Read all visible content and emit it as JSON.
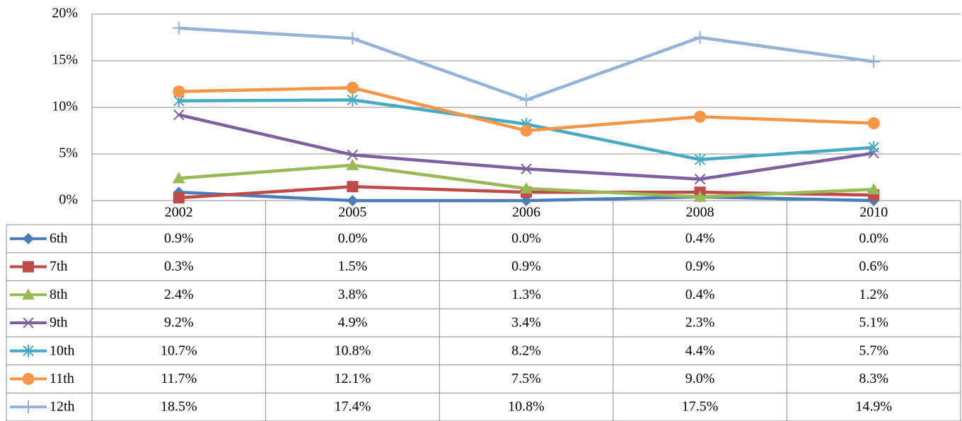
{
  "chart_data": {
    "type": "line",
    "categories": [
      "2002",
      "2005",
      "2006",
      "2008",
      "2010"
    ],
    "ylim": [
      0,
      20
    ],
    "yticks": [
      {
        "value": 0,
        "label": "0%"
      },
      {
        "value": 5,
        "label": "5%"
      },
      {
        "value": 10,
        "label": "10%"
      },
      {
        "value": 15,
        "label": "15%"
      },
      {
        "value": 20,
        "label": "20%"
      }
    ],
    "grid": true,
    "series": [
      {
        "name": "6th",
        "color": "#4a7ebb",
        "values": [
          0.9,
          0.0,
          0.0,
          0.4,
          0.0
        ],
        "value_labels": [
          "0.9%",
          "0.0%",
          "0.0%",
          "0.4%",
          "0.0%"
        ]
      },
      {
        "name": "7th",
        "color": "#be4b48",
        "values": [
          0.3,
          1.5,
          0.9,
          0.9,
          0.6
        ],
        "value_labels": [
          "0.3%",
          "1.5%",
          "0.9%",
          "0.9%",
          "0.6%"
        ]
      },
      {
        "name": "8th",
        "color": "#98b954",
        "values": [
          2.4,
          3.8,
          1.3,
          0.4,
          1.2
        ],
        "value_labels": [
          "2.4%",
          "3.8%",
          "1.3%",
          "0.4%",
          "1.2%"
        ]
      },
      {
        "name": "9th",
        "color": "#7d60a0",
        "values": [
          9.2,
          4.9,
          3.4,
          2.3,
          5.1
        ],
        "value_labels": [
          "9.2%",
          "4.9%",
          "3.4%",
          "2.3%",
          "5.1%"
        ]
      },
      {
        "name": "10th",
        "color": "#46aac5",
        "values": [
          10.7,
          10.8,
          8.2,
          4.4,
          5.7
        ],
        "value_labels": [
          "10.7%",
          "10.8%",
          "8.2%",
          "4.4%",
          "5.7%"
        ]
      },
      {
        "name": "11th",
        "color": "#f79646",
        "values": [
          11.7,
          12.1,
          7.5,
          9.0,
          8.3
        ],
        "value_labels": [
          "11.7%",
          "12.1%",
          "7.5%",
          "9.0%",
          "8.3%"
        ]
      },
      {
        "name": "12th",
        "color": "#95b3d7",
        "values": [
          18.5,
          17.4,
          10.8,
          17.5,
          14.9
        ],
        "value_labels": [
          "18.5%",
          "17.4%",
          "10.8%",
          "17.5%",
          "14.9%"
        ]
      }
    ]
  }
}
